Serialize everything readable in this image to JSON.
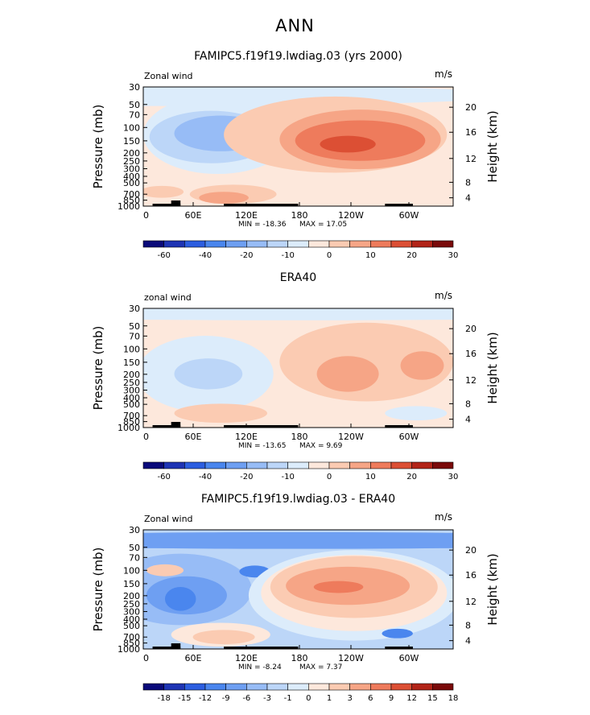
{
  "page_title": "ANN",
  "chart_data": [
    {
      "type": "contour",
      "title": "FAMIPC5.f19f19.lwdiag.03 (yrs 2000)",
      "variable_label": "Zonal wind",
      "units": "m/s",
      "ylabel_left": "Pressure (mb)",
      "ylabel_right": "Height (km)",
      "pressure_ticks": [
        "30",
        "50",
        "70",
        "100",
        "150",
        "200",
        "250",
        "300",
        "400",
        "500",
        "700",
        "850",
        "1000"
      ],
      "height_ticks": [
        "20",
        "16",
        "12",
        "8",
        "4"
      ],
      "longitude_ticks": [
        "0",
        "60E",
        "120E",
        "180",
        "120W",
        "60W"
      ],
      "min_label": "MIN = -18.36",
      "max_label": "MAX =  17.05",
      "min_value": -18.36,
      "max_value": 17.05,
      "colorbar": {
        "levels": [
          -60,
          -50,
          -40,
          -30,
          -20,
          -15,
          -10,
          -5,
          0,
          5,
          10,
          15,
          20,
          25,
          30
        ],
        "tick_labels": [
          "-60",
          "-40",
          "-20",
          "-10",
          "0",
          "10",
          "20",
          "30"
        ]
      }
    },
    {
      "type": "contour",
      "title": "ERA40",
      "variable_label": "zonal wind",
      "units": "m/s",
      "ylabel_left": "Pressure (mb)",
      "ylabel_right": "Height (km)",
      "pressure_ticks": [
        "30",
        "50",
        "70",
        "100",
        "150",
        "200",
        "250",
        "300",
        "400",
        "500",
        "700",
        "850",
        "1000"
      ],
      "height_ticks": [
        "20",
        "16",
        "12",
        "8",
        "4"
      ],
      "longitude_ticks": [
        "0",
        "60E",
        "120E",
        "180",
        "120W",
        "60W"
      ],
      "min_label": "MIN = -13.65",
      "max_label": "MAX =   9.69",
      "min_value": -13.65,
      "max_value": 9.69,
      "colorbar": {
        "levels": [
          -60,
          -50,
          -40,
          -30,
          -20,
          -15,
          -10,
          -5,
          0,
          5,
          10,
          15,
          20,
          25,
          30
        ],
        "tick_labels": [
          "-60",
          "-40",
          "-20",
          "-10",
          "0",
          "10",
          "20",
          "30"
        ]
      }
    },
    {
      "type": "contour",
      "title": "FAMIPC5.f19f19.lwdiag.03 - ERA40",
      "variable_label": "Zonal wind",
      "units": "m/s",
      "ylabel_left": "Pressure (mb)",
      "ylabel_right": "Height (km)",
      "pressure_ticks": [
        "30",
        "50",
        "70",
        "100",
        "150",
        "200",
        "250",
        "300",
        "400",
        "500",
        "700",
        "850",
        "1000"
      ],
      "height_ticks": [
        "20",
        "16",
        "12",
        "8",
        "4"
      ],
      "longitude_ticks": [
        "0",
        "60E",
        "120E",
        "180",
        "120W",
        "60W"
      ],
      "min_label": "MIN =  -8.24",
      "max_label": "MAX =   7.37",
      "min_value": -8.24,
      "max_value": 7.37,
      "colorbar": {
        "levels": [
          -18,
          -15,
          -12,
          -9,
          -6,
          -3,
          -1,
          0,
          1,
          3,
          6,
          9,
          12,
          15,
          18
        ],
        "tick_labels": [
          "-18",
          "-15",
          "-12",
          "-9",
          "-6",
          "-3",
          "-1",
          "0",
          "1",
          "3",
          "6",
          "9",
          "12",
          "15",
          "18"
        ]
      }
    }
  ],
  "palette": [
    "#0a0a7a",
    "#1e34b4",
    "#2c5ee0",
    "#4a86ee",
    "#6e9ff2",
    "#97bcf6",
    "#bcd6f8",
    "#dcecfb",
    "#fde8dc",
    "#fbcbb2",
    "#f6a586",
    "#ee7b5c",
    "#dc4f34",
    "#b22418",
    "#7a0a0a"
  ]
}
